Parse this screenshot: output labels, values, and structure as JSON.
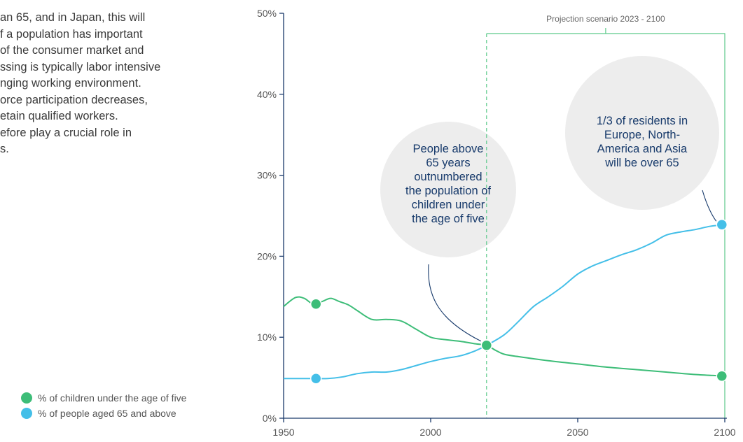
{
  "body_text": {
    "lines": [
      "an 65, and in Japan, this will",
      "f a population has important",
      "of the consumer market and",
      "ssing is typically labor intensive",
      "nging working environment.",
      "orce participation decreases,",
      "etain qualified workers.",
      "efore play a crucial role in",
      "s."
    ]
  },
  "legend": {
    "items": [
      {
        "label": "% of children under the age of five",
        "color": "#3dbd78"
      },
      {
        "label": "% of people aged 65 and above",
        "color": "#44bfe8"
      }
    ]
  },
  "chart_data": {
    "type": "line",
    "x_range": [
      1950,
      2100
    ],
    "y_range": [
      0,
      50
    ],
    "x_ticks": [
      "1950",
      "2000",
      "2050",
      "2100"
    ],
    "y_ticks": [
      "0%",
      "10%",
      "20%",
      "30%",
      "40%",
      "50%"
    ],
    "grid": false,
    "legend_position": "bottom-left",
    "projection": {
      "label": "Projection scenario 2023 - 2100",
      "start": 2019,
      "end": 2100
    },
    "series": [
      {
        "name": "% of children under the age of five",
        "color": "#3dbd78",
        "x": [
          1950,
          1954,
          1957,
          1960,
          1963,
          1966,
          1969,
          1972,
          1975,
          1980,
          1985,
          1990,
          1995,
          2000,
          2005,
          2010,
          2015,
          2019,
          2022,
          2025,
          2030,
          2040,
          2050,
          2060,
          2070,
          2080,
          2090,
          2100
        ],
        "y": [
          13.8,
          14.9,
          14.8,
          14.1,
          14.4,
          14.8,
          14.4,
          14.0,
          13.3,
          12.2,
          12.2,
          12.0,
          11.0,
          10.0,
          9.7,
          9.5,
          9.2,
          9.0,
          8.4,
          7.9,
          7.6,
          7.1,
          6.7,
          6.3,
          6.0,
          5.7,
          5.4,
          5.2
        ]
      },
      {
        "name": "% of people aged 65 and above",
        "color": "#44bfe8",
        "x": [
          1950,
          1955,
          1960,
          1965,
          1970,
          1975,
          1980,
          1985,
          1990,
          1995,
          2000,
          2005,
          2010,
          2015,
          2019,
          2025,
          2030,
          2035,
          2040,
          2045,
          2050,
          2055,
          2060,
          2065,
          2070,
          2075,
          2080,
          2085,
          2090,
          2095,
          2100
        ],
        "y": [
          4.9,
          4.9,
          4.9,
          4.9,
          5.1,
          5.5,
          5.7,
          5.7,
          6.0,
          6.5,
          7.0,
          7.4,
          7.7,
          8.3,
          9.0,
          10.3,
          12.0,
          13.8,
          15.0,
          16.3,
          17.8,
          18.8,
          19.5,
          20.2,
          20.8,
          21.6,
          22.6,
          23.0,
          23.3,
          23.7,
          23.9
        ]
      }
    ],
    "markers": [
      {
        "series": 0,
        "x": 1961,
        "y": 14.1
      },
      {
        "series": 0,
        "x": 2019,
        "y": 9.0
      },
      {
        "series": 0,
        "x": 2099,
        "y": 5.2
      },
      {
        "series": 1,
        "x": 1961,
        "y": 4.9
      },
      {
        "series": 1,
        "x": 2099,
        "y": 23.9
      }
    ],
    "annotations": [
      {
        "text": "People above 65 years outnumbered the population of children under the age of five",
        "lines": [
          "People above",
          "65 years",
          "outnumbered",
          "the population of",
          "children under",
          "the age of five"
        ],
        "x": 2019,
        "y": 9.0
      },
      {
        "text": "1/3 of residents in Europe, North-America and Asia will be over 65",
        "lines": [
          "1/3 of residents in",
          "Europe, North-",
          "America and Asia",
          "will be over 65"
        ],
        "x": 2099,
        "y": 23.9
      }
    ]
  }
}
